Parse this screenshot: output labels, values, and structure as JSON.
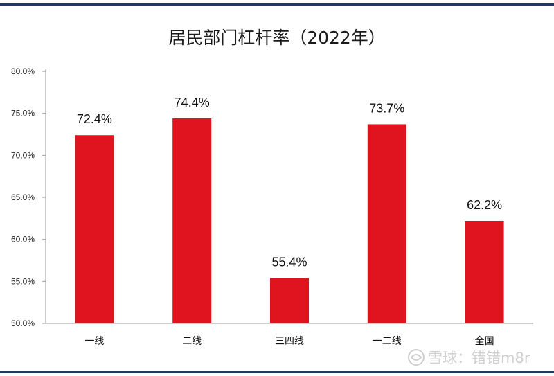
{
  "chart_data": {
    "type": "bar",
    "title": "居民部门杠杆率（2022年）",
    "categories": [
      "一线",
      "二线",
      "三四线",
      "一二线",
      "全国"
    ],
    "values": [
      72.4,
      74.4,
      55.4,
      73.7,
      62.2
    ],
    "data_labels": [
      "72.4%",
      "74.4%",
      "55.4%",
      "73.7%",
      "62.2%"
    ],
    "ylim": [
      50,
      80
    ],
    "yticks": [
      50,
      55,
      60,
      65,
      70,
      75,
      80
    ],
    "ytick_labels": [
      "50.0%",
      "55.0%",
      "60.0%",
      "65.0%",
      "70.0%",
      "75.0%",
      "80.0%"
    ],
    "xlabel": "",
    "ylabel": "",
    "grid": false,
    "bar_color": "#e0141e"
  },
  "watermark": {
    "text": "雪球：错错m8r"
  }
}
